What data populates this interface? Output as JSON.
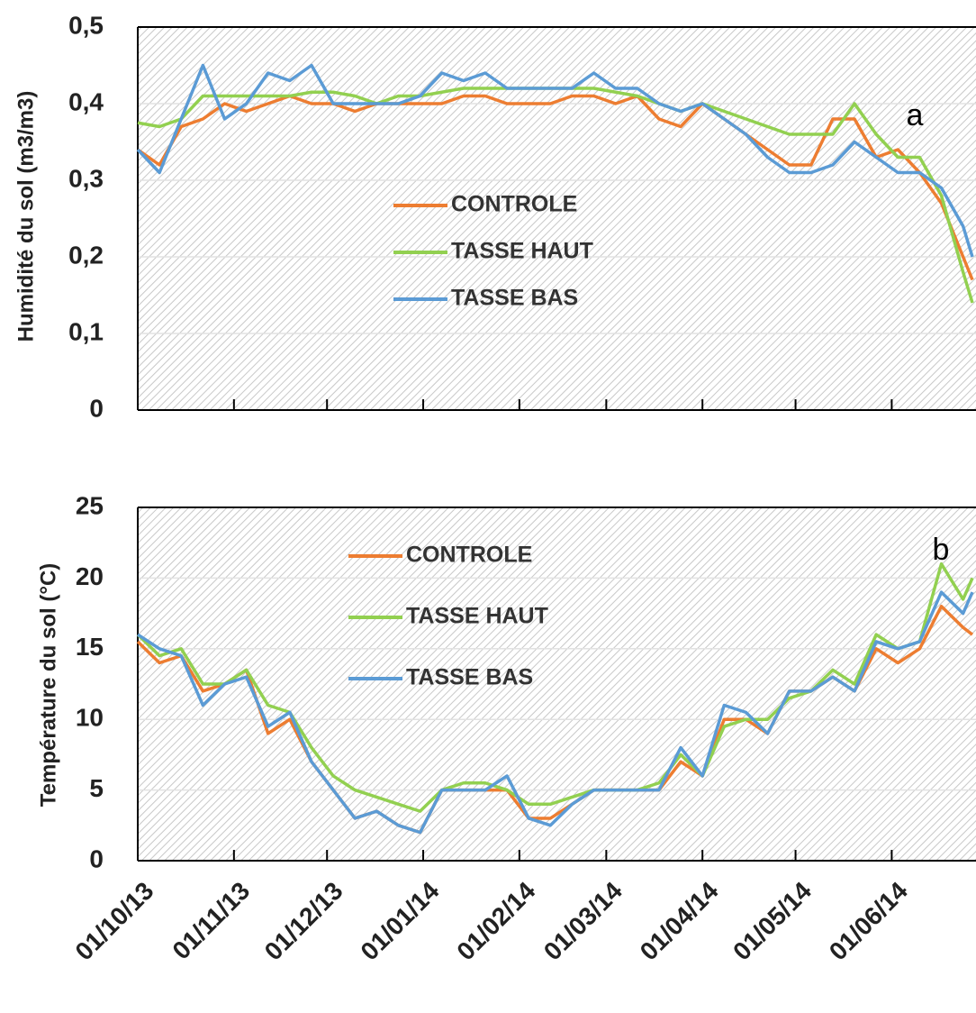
{
  "chart_data": [
    {
      "type": "line",
      "y_label": "Humidité du sol (m3/m3)",
      "annotation": "a",
      "x": [
        "2013-10-01",
        "2013-10-08",
        "2013-10-15",
        "2013-10-22",
        "2013-10-29",
        "2013-11-05",
        "2013-11-12",
        "2013-11-19",
        "2013-11-26",
        "2013-12-03",
        "2013-12-10",
        "2013-12-17",
        "2013-12-24",
        "2013-12-31",
        "2014-01-07",
        "2014-01-14",
        "2014-01-21",
        "2014-01-28",
        "2014-02-04",
        "2014-02-11",
        "2014-02-18",
        "2014-02-25",
        "2014-03-04",
        "2014-03-11",
        "2014-03-18",
        "2014-03-25",
        "2014-04-01",
        "2014-04-08",
        "2014-04-15",
        "2014-04-22",
        "2014-04-29",
        "2014-05-06",
        "2014-05-13",
        "2014-05-20",
        "2014-05-27",
        "2014-06-03",
        "2014-06-10",
        "2014-06-17",
        "2014-06-24",
        "2014-06-27"
      ],
      "xlim": [
        "2013-10-01",
        "2014-06-27"
      ],
      "ylim": [
        0,
        0.5
      ],
      "yticks": [
        0,
        {
          "value": 0.1,
          "label": "0,1"
        },
        {
          "value": 0.2,
          "label": "0,2"
        },
        {
          "value": 0.3,
          "label": "0,3"
        },
        {
          "value": 0.4,
          "label": "0,4"
        },
        {
          "value": 0.5,
          "label": "0,5"
        }
      ],
      "grid": true,
      "series": [
        {
          "name": "CONTROLE",
          "color": "#ed7d31",
          "values": [
            0.34,
            0.32,
            0.37,
            0.38,
            0.4,
            0.39,
            0.4,
            0.41,
            0.4,
            0.4,
            0.39,
            0.4,
            0.4,
            0.4,
            0.4,
            0.41,
            0.41,
            0.4,
            0.4,
            0.4,
            0.41,
            0.41,
            0.4,
            0.41,
            0.38,
            0.37,
            0.4,
            0.38,
            0.36,
            0.34,
            0.32,
            0.32,
            0.38,
            0.38,
            0.33,
            0.34,
            0.31,
            0.27,
            0.2,
            0.17
          ]
        },
        {
          "name": "TASSE HAUT",
          "color": "#92d050",
          "values": [
            0.375,
            0.37,
            0.38,
            0.41,
            0.41,
            0.41,
            0.41,
            0.41,
            0.415,
            0.415,
            0.41,
            0.4,
            0.41,
            0.41,
            0.415,
            0.42,
            0.42,
            0.42,
            0.42,
            0.42,
            0.42,
            0.42,
            0.415,
            0.41,
            0.4,
            0.39,
            0.4,
            0.39,
            0.38,
            0.37,
            0.36,
            0.36,
            0.36,
            0.4,
            0.36,
            0.33,
            0.33,
            0.28,
            0.18,
            0.14
          ]
        },
        {
          "name": "TASSE BAS",
          "color": "#5b9bd5",
          "values": [
            0.34,
            0.31,
            0.38,
            0.45,
            0.38,
            0.4,
            0.44,
            0.43,
            0.45,
            0.4,
            0.4,
            0.4,
            0.4,
            0.41,
            0.44,
            0.43,
            0.44,
            0.42,
            0.42,
            0.42,
            0.42,
            0.44,
            0.42,
            0.42,
            0.4,
            0.39,
            0.4,
            0.38,
            0.36,
            0.33,
            0.31,
            0.31,
            0.32,
            0.35,
            0.33,
            0.31,
            0.31,
            0.29,
            0.24,
            0.2
          ]
        }
      ]
    },
    {
      "type": "line",
      "y_label": "Température du sol  (°C)",
      "annotation": "b",
      "x": [
        "2013-10-01",
        "2013-10-08",
        "2013-10-15",
        "2013-10-22",
        "2013-10-29",
        "2013-11-05",
        "2013-11-12",
        "2013-11-19",
        "2013-11-26",
        "2013-12-03",
        "2013-12-10",
        "2013-12-17",
        "2013-12-24",
        "2013-12-31",
        "2014-01-07",
        "2014-01-14",
        "2014-01-21",
        "2014-01-28",
        "2014-02-04",
        "2014-02-11",
        "2014-02-18",
        "2014-02-25",
        "2014-03-04",
        "2014-03-11",
        "2014-03-18",
        "2014-03-25",
        "2014-04-01",
        "2014-04-08",
        "2014-04-15",
        "2014-04-22",
        "2014-04-29",
        "2014-05-06",
        "2014-05-13",
        "2014-05-20",
        "2014-05-27",
        "2014-06-03",
        "2014-06-10",
        "2014-06-17",
        "2014-06-24",
        "2014-06-27"
      ],
      "xlim": [
        "2013-10-01",
        "2014-06-27"
      ],
      "xticks": [
        {
          "value": "2013-10-01",
          "label": "01/10/13"
        },
        {
          "value": "2013-11-01",
          "label": "01/11/13"
        },
        {
          "value": "2013-12-01",
          "label": "01/12/13"
        },
        {
          "value": "2014-01-01",
          "label": "01/01/14"
        },
        {
          "value": "2014-02-01",
          "label": "01/02/14"
        },
        {
          "value": "2014-03-01",
          "label": "01/03/14"
        },
        {
          "value": "2014-04-01",
          "label": "01/04/14"
        },
        {
          "value": "2014-05-01",
          "label": "01/05/14"
        },
        {
          "value": "2014-06-01",
          "label": "01/06/14"
        }
      ],
      "ylim": [
        0,
        25
      ],
      "yticks": [
        0,
        5,
        10,
        15,
        20,
        25
      ],
      "grid": true,
      "series": [
        {
          "name": "CONTROLE",
          "color": "#ed7d31",
          "values": [
            15.5,
            14,
            14.5,
            12,
            12.5,
            13.5,
            9,
            10,
            7,
            5,
            3,
            3.5,
            2.5,
            2,
            5,
            5,
            5,
            5,
            3,
            3,
            4,
            5,
            5,
            5,
            5,
            7,
            6,
            10,
            10,
            9,
            12,
            12,
            13,
            12,
            15,
            14,
            15,
            18,
            16.5,
            16
          ]
        },
        {
          "name": "TASSE HAUT",
          "color": "#92d050",
          "values": [
            16,
            14.5,
            15,
            12.5,
            12.5,
            13.5,
            11,
            10.5,
            8,
            6,
            5,
            4.5,
            4,
            3.5,
            5,
            5.5,
            5.5,
            5,
            4,
            4,
            4.5,
            5,
            5,
            5,
            5.5,
            7.5,
            6,
            9.5,
            10,
            10,
            11.5,
            12,
            13.5,
            12.5,
            16,
            15,
            15.5,
            21,
            18.5,
            20
          ]
        },
        {
          "name": "TASSE BAS",
          "color": "#5b9bd5",
          "values": [
            16,
            15,
            14.5,
            11,
            12.5,
            13,
            9.5,
            10.5,
            7,
            5,
            3,
            3.5,
            2.5,
            2,
            5,
            5,
            5,
            6,
            3,
            2.5,
            4,
            5,
            5,
            5,
            5,
            8,
            6,
            11,
            10.5,
            9,
            12,
            12,
            13,
            12,
            15.5,
            15,
            15.5,
            19,
            17.5,
            19
          ]
        }
      ]
    }
  ]
}
